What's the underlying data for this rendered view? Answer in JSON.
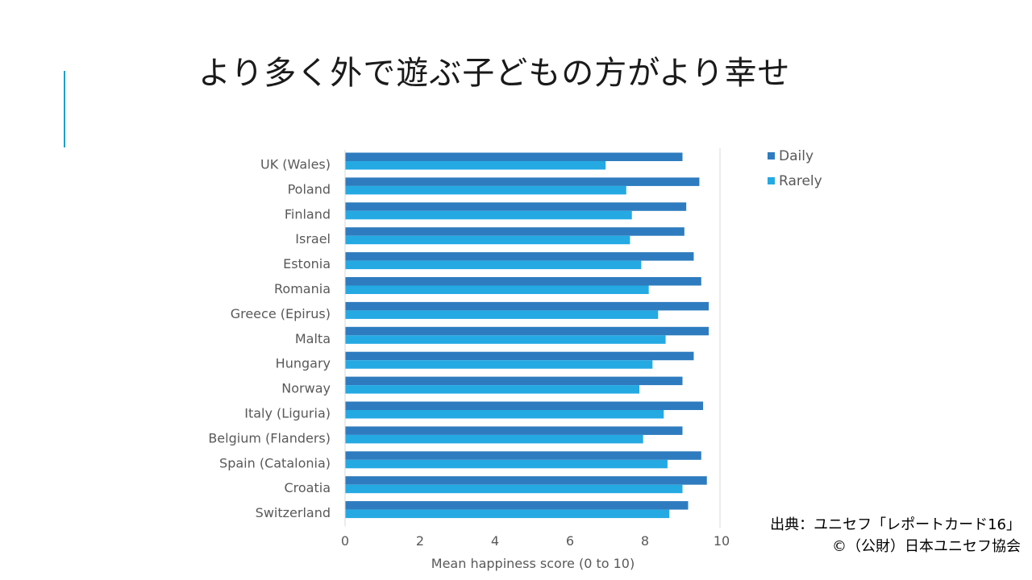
{
  "title": "より多く外で遊ぶ子どもの方がより幸せ",
  "source": {
    "line1": "出典：ユニセフ「レポートカード16」",
    "line2": "©（公財）日本ユニセフ協会"
  },
  "colors": {
    "daily": "#2e7cbf",
    "rarely": "#25a9e3",
    "axis_text": "#595959",
    "accent": "#1ba1c7"
  },
  "chart_data": {
    "type": "bar",
    "orientation": "horizontal",
    "title": "",
    "xlabel": "Mean happiness score (0 to 10)",
    "ylabel": "",
    "xlim": [
      0,
      10
    ],
    "xticks": [
      "0",
      "2",
      "4",
      "6",
      "8",
      "10"
    ],
    "grid": false,
    "legend_position": "top-right",
    "categories": [
      "UK (Wales)",
      "Poland",
      "Finland",
      "Israel",
      "Estonia",
      "Romania",
      "Greece (Epirus)",
      "Malta",
      "Hungary",
      "Norway",
      "Italy (Liguria)",
      "Belgium (Flanders)",
      "Spain (Catalonia)",
      "Croatia",
      "Switzerland"
    ],
    "series": [
      {
        "name": "Daily",
        "values": [
          9.0,
          9.45,
          9.1,
          9.05,
          9.3,
          9.5,
          9.7,
          9.7,
          9.3,
          9.0,
          9.55,
          9.0,
          9.5,
          9.65,
          9.15
        ]
      },
      {
        "name": "Rarely",
        "values": [
          6.95,
          7.5,
          7.65,
          7.6,
          7.9,
          8.1,
          8.35,
          8.55,
          8.2,
          7.85,
          8.5,
          7.95,
          8.6,
          9.0,
          8.65
        ]
      }
    ]
  }
}
